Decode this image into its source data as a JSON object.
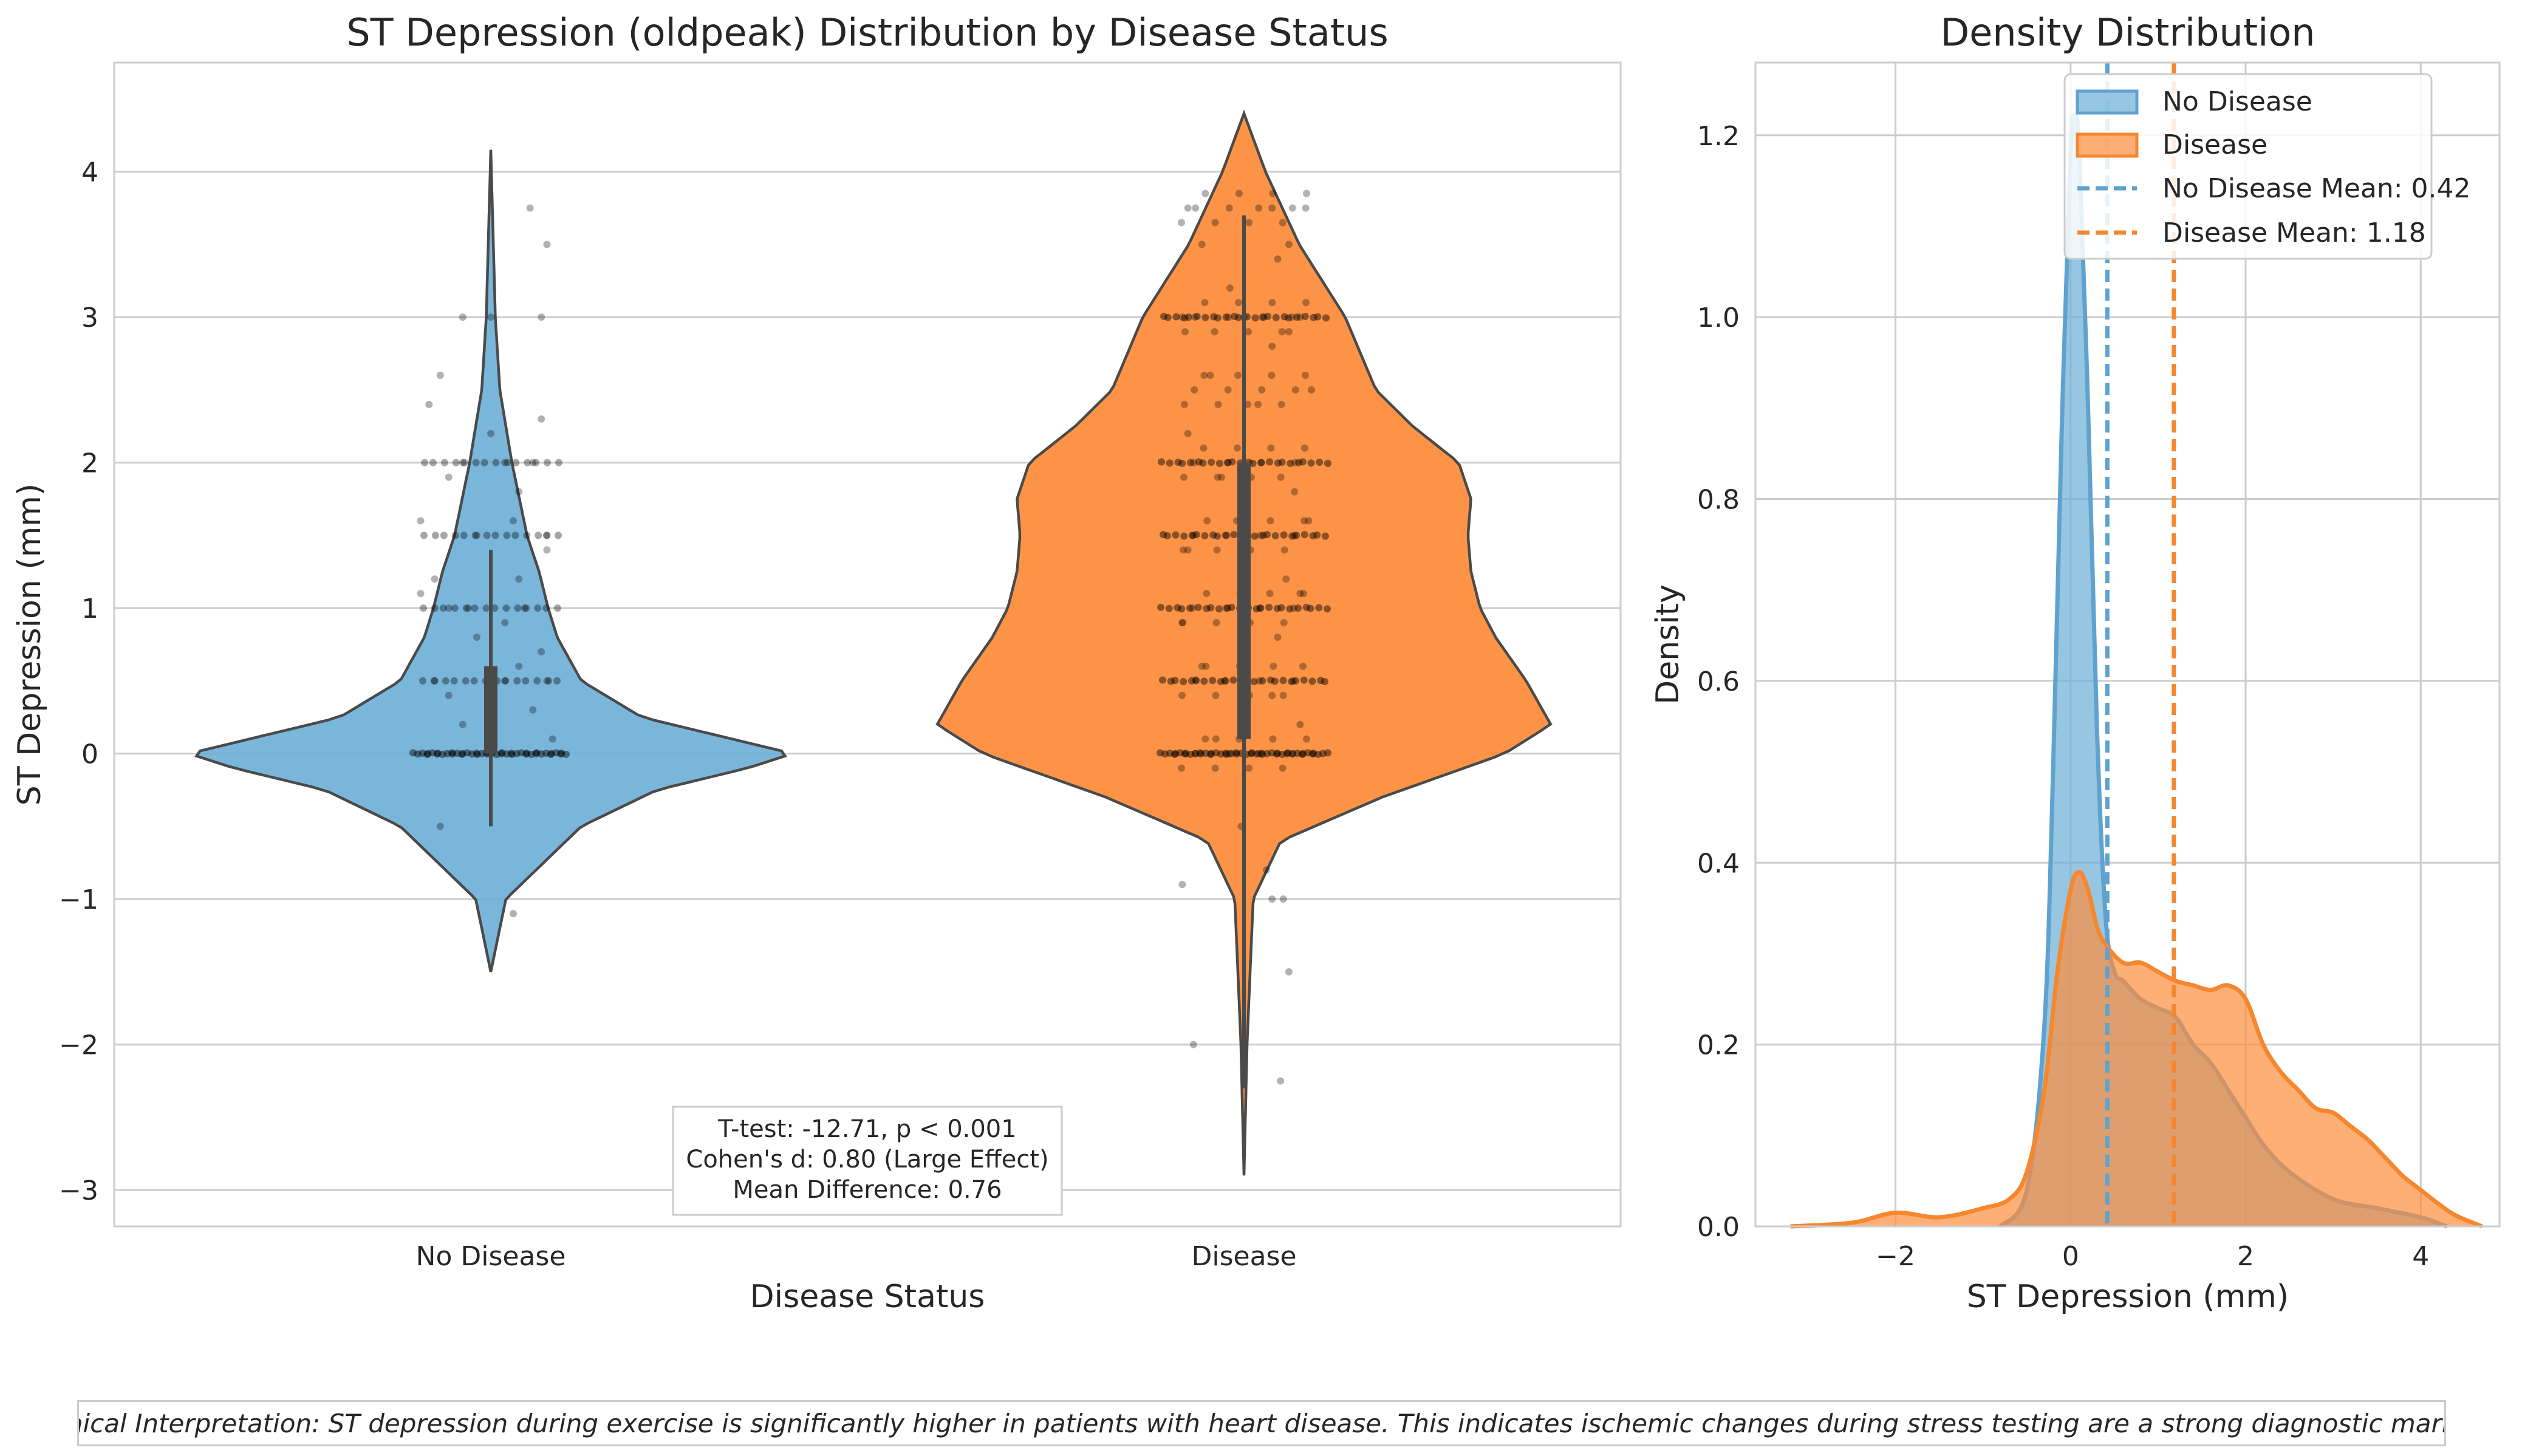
{
  "colors": {
    "no_disease": "#6baed6",
    "disease": "#fd8d3c",
    "no_disease_line": "#5fa2cf",
    "disease_line": "#f5872f"
  },
  "chart_data": [
    {
      "type": "violin",
      "title": "ST Depression (oldpeak) Distribution by Disease Status",
      "xlabel": "Disease Status",
      "ylabel": "ST Depression (mm)",
      "categories": [
        "No Disease",
        "Disease"
      ],
      "ylim": [
        -3.25,
        4.75
      ],
      "yticks": [
        -3,
        -2,
        -1,
        0,
        1,
        2,
        3,
        4
      ],
      "grid": true,
      "series": [
        {
          "category": "No Disease",
          "range": [
            -1.5,
            4.15
          ],
          "quartiles": [
            0.0,
            0.0,
            0.6
          ],
          "whiskers": [
            -0.5,
            1.4
          ],
          "profile": [
            [
              -1.5,
              0.0
            ],
            [
              -1.0,
              0.05
            ],
            [
              -0.5,
              0.3
            ],
            [
              -0.25,
              0.55
            ],
            [
              -0.1,
              0.85
            ],
            [
              0.0,
              1.0
            ],
            [
              0.1,
              0.8
            ],
            [
              0.25,
              0.5
            ],
            [
              0.5,
              0.3
            ],
            [
              0.8,
              0.22
            ],
            [
              1.0,
              0.19
            ],
            [
              1.25,
              0.16
            ],
            [
              1.5,
              0.12
            ],
            [
              2.0,
              0.07
            ],
            [
              2.5,
              0.03
            ],
            [
              3.0,
              0.015
            ],
            [
              4.15,
              0.0
            ]
          ],
          "points": [
            [
              -0.5,
              -0.18
            ],
            [
              -1.1,
              0.08
            ],
            [
              0.4,
              -0.15
            ],
            [
              0.6,
              0.1
            ],
            [
              0.8,
              -0.05
            ],
            [
              1.2,
              -0.2
            ],
            [
              1.4,
              0.2
            ],
            [
              1.6,
              -0.25
            ],
            [
              1.8,
              0.1
            ],
            [
              2.0,
              -0.1
            ],
            [
              2.0,
              0.15
            ],
            [
              2.0,
              0.05
            ],
            [
              2.2,
              0.0
            ],
            [
              2.4,
              -0.22
            ],
            [
              2.6,
              -0.18
            ],
            [
              3.0,
              -0.1
            ],
            [
              3.0,
              0.0
            ],
            [
              3.0,
              0.18
            ],
            [
              3.5,
              0.2
            ],
            [
              3.75,
              0.14
            ],
            [
              1.0,
              -0.15
            ],
            [
              1.0,
              0.12
            ],
            [
              1.0,
              -0.08
            ],
            [
              0.5,
              -0.2
            ],
            [
              0.5,
              0.05
            ],
            [
              0.5,
              0.2
            ],
            [
              1.5,
              0.2
            ],
            [
              1.5,
              -0.05
            ],
            [
              0.2,
              -0.1
            ],
            [
              0.3,
              0.15
            ],
            [
              0.9,
              0.05
            ],
            [
              1.2,
              0.1
            ],
            [
              1.9,
              -0.15
            ],
            [
              2.3,
              0.18
            ],
            [
              0.7,
              0.18
            ],
            [
              1.1,
              -0.25
            ],
            [
              1.6,
              0.08
            ],
            [
              0.1,
              0.22
            ]
          ]
        },
        {
          "category": "Disease",
          "range": [
            -2.9,
            4.4
          ],
          "quartiles": [
            0.1,
            1.2,
            2.0
          ],
          "whiskers": [
            -2.3,
            3.7
          ],
          "profile": [
            [
              -2.9,
              0.0
            ],
            [
              -2.0,
              0.01
            ],
            [
              -1.0,
              0.03
            ],
            [
              -0.6,
              0.12
            ],
            [
              -0.3,
              0.45
            ],
            [
              0.0,
              0.85
            ],
            [
              0.2,
              1.0
            ],
            [
              0.5,
              0.92
            ],
            [
              0.8,
              0.82
            ],
            [
              1.0,
              0.77
            ],
            [
              1.25,
              0.74
            ],
            [
              1.5,
              0.73
            ],
            [
              1.75,
              0.74
            ],
            [
              2.0,
              0.7
            ],
            [
              2.25,
              0.55
            ],
            [
              2.5,
              0.43
            ],
            [
              3.0,
              0.33
            ],
            [
              3.5,
              0.18
            ],
            [
              4.0,
              0.07
            ],
            [
              4.4,
              0.0
            ]
          ],
          "points": [
            [
              -0.9,
              -0.22
            ],
            [
              -2.0,
              -0.18
            ],
            [
              -1.0,
              0.1
            ],
            [
              -1.0,
              0.14
            ],
            [
              -1.5,
              0.16
            ],
            [
              -2.25,
              0.13
            ],
            [
              -0.8,
              0.08
            ],
            [
              -0.5,
              -0.01
            ],
            [
              3.75,
              -0.2
            ],
            [
              3.75,
              0.1
            ],
            [
              3.75,
              0.22
            ],
            [
              3.5,
              -0.15
            ],
            [
              3.5,
              0.16
            ],
            [
              3.0,
              -0.22
            ],
            [
              3.0,
              0.0
            ],
            [
              3.0,
              0.2
            ],
            [
              2.8,
              0.1
            ],
            [
              2.6,
              -0.12
            ],
            [
              2.5,
              0.24
            ],
            [
              2.2,
              -0.2
            ],
            [
              1.8,
              0.18
            ],
            [
              1.6,
              0.23
            ],
            [
              1.4,
              -0.2
            ],
            [
              1.2,
              0.15
            ],
            [
              0.8,
              0.12
            ],
            [
              0.6,
              -0.15
            ],
            [
              0.2,
              0.2
            ],
            [
              0.1,
              -0.1
            ],
            [
              2.4,
              0.05
            ],
            [
              3.2,
              -0.05
            ],
            [
              3.4,
              0.12
            ],
            [
              1.9,
              -0.08
            ],
            [
              1.1,
              0.2
            ],
            [
              0.4,
              0.1
            ],
            [
              0.9,
              -0.22
            ],
            [
              2.9,
              0.16
            ]
          ],
          "points_rows": [
            0.0,
            0.5,
            1.0,
            1.5,
            2.0,
            3.0
          ]
        }
      ],
      "annotation": [
        "T-test: -12.71, p < 0.001",
        "Cohen's d: 0.80 (Large Effect)",
        "Mean Difference: 0.76"
      ]
    },
    {
      "type": "area",
      "title": "Density Distribution",
      "xlabel": "ST Depression (mm)",
      "ylabel": "Density",
      "xlim": [
        -3.6,
        4.9
      ],
      "ylim": [
        0,
        1.28
      ],
      "xticks": [
        -2,
        0,
        2,
        4
      ],
      "yticks": [
        0.0,
        0.2,
        0.4,
        0.6,
        0.8,
        1.0,
        1.2
      ],
      "grid": true,
      "legend_position": "top-right",
      "series": [
        {
          "name": "No Disease",
          "x": [
            -0.8,
            -0.5,
            -0.3,
            -0.2,
            -0.1,
            0.0,
            0.05,
            0.1,
            0.2,
            0.3,
            0.4,
            0.5,
            0.6,
            0.8,
            1.0,
            1.2,
            1.4,
            1.6,
            1.8,
            2.0,
            2.2,
            2.5,
            3.0,
            3.5,
            4.0,
            4.3
          ],
          "y": [
            0.0,
            0.04,
            0.22,
            0.5,
            0.88,
            1.18,
            1.22,
            1.18,
            0.9,
            0.55,
            0.34,
            0.28,
            0.27,
            0.25,
            0.24,
            0.23,
            0.2,
            0.18,
            0.15,
            0.12,
            0.09,
            0.06,
            0.03,
            0.02,
            0.01,
            0.0
          ]
        },
        {
          "name": "Disease",
          "x": [
            -3.2,
            -2.5,
            -2.0,
            -1.5,
            -1.0,
            -0.7,
            -0.5,
            -0.3,
            -0.15,
            0.0,
            0.1,
            0.2,
            0.3,
            0.4,
            0.6,
            0.8,
            1.0,
            1.2,
            1.4,
            1.6,
            1.8,
            2.0,
            2.2,
            2.4,
            2.6,
            2.8,
            3.0,
            3.2,
            3.4,
            3.6,
            3.8,
            4.0,
            4.2,
            4.4,
            4.7
          ],
          "y": [
            0.0,
            0.004,
            0.015,
            0.01,
            0.02,
            0.03,
            0.06,
            0.15,
            0.28,
            0.37,
            0.39,
            0.37,
            0.33,
            0.31,
            0.29,
            0.29,
            0.28,
            0.27,
            0.265,
            0.26,
            0.265,
            0.25,
            0.2,
            0.17,
            0.15,
            0.13,
            0.125,
            0.11,
            0.095,
            0.075,
            0.055,
            0.04,
            0.025,
            0.012,
            0.0
          ]
        }
      ],
      "mean_lines": [
        {
          "name": "No Disease Mean: 0.42",
          "x": 0.42
        },
        {
          "name": "Disease Mean: 1.18",
          "x": 1.18
        }
      ]
    }
  ],
  "footer": {
    "interpretation": "Clinical Interpretation: ST depression during exercise is significantly higher in patients with heart disease. This indicates ischemic changes during stress testing are a strong diagnostic marker."
  }
}
